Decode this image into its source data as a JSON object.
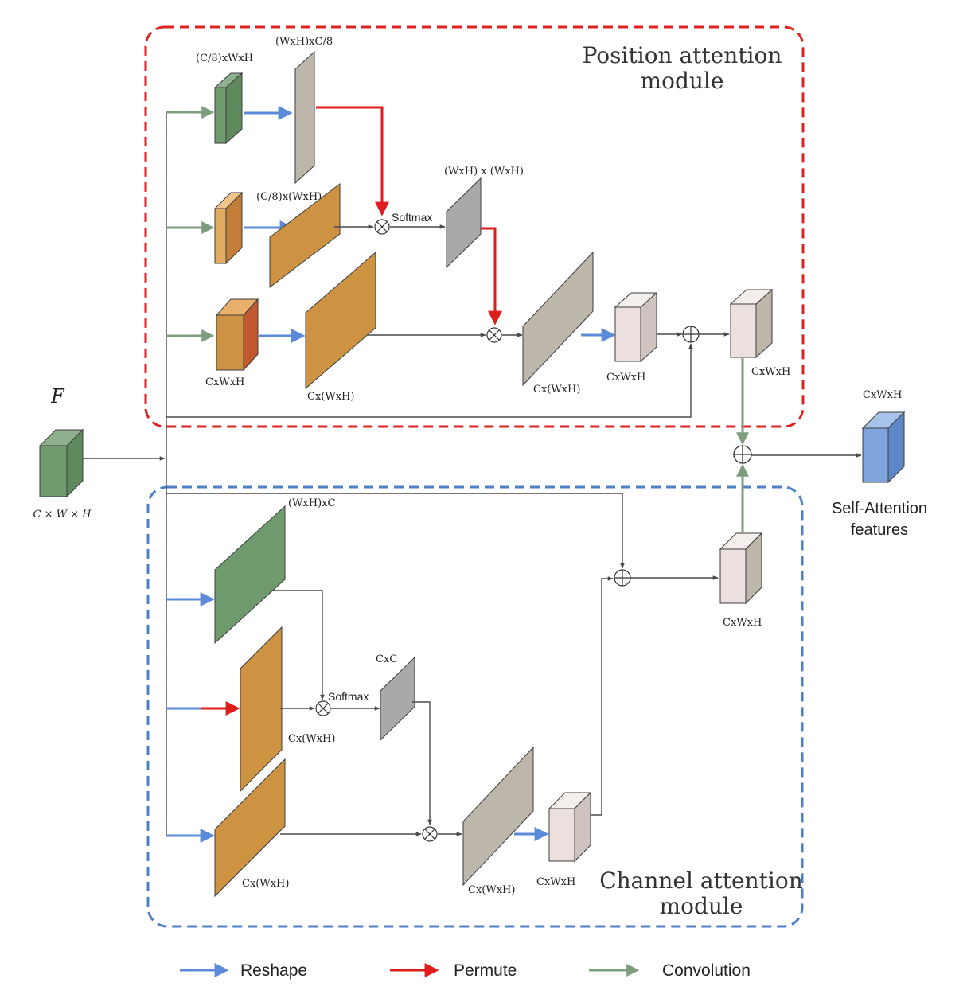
{
  "modules": {
    "position": {
      "title_line1": "Position attention",
      "title_line2": "module"
    },
    "channel": {
      "title_line1": "Channel attention",
      "title_line2": "module"
    }
  },
  "input": {
    "symbol": "F",
    "shape_label": "C × W × H"
  },
  "position_labels": {
    "query_feature": "(C/8)xWxH",
    "query_reshaped": "(WxH)xC/8",
    "key_reshaped": "(C/8)x(WxH)",
    "attention_map": "(WxH) x (WxH)",
    "softmax": "Softmax",
    "value_feature": "CxWxH",
    "value_reshaped": "Cx(WxH)",
    "product": "Cx(WxH)",
    "reshaped_out": "CxWxH",
    "module_out": "CxWxH"
  },
  "channel_labels": {
    "top_reshaped": "(WxH)xC",
    "mid_reshaped": "Cx(WxH)",
    "attention_map": "CxC",
    "softmax": "Softmax",
    "bottom_reshaped": "Cx(WxH)",
    "product": "Cx(WxH)",
    "reshaped_out": "CxWxH",
    "module_out": "CxWxH"
  },
  "output": {
    "shape_label": "CxWxH",
    "title_line1": "Self-Attention",
    "title_line2": "features"
  },
  "legend": {
    "reshape": "Reshape",
    "permute": "Permute",
    "convolution": "Convolution"
  },
  "colors": {
    "position_border": "#dd2222",
    "channel_border": "#4f7fc4",
    "reshape_arrow": "#5b8bd8",
    "permute_arrow": "#e01d1d",
    "convolution_arrow": "#7d9e7e",
    "green_block": "#6f9a6e",
    "orange_block": "#cd9242",
    "gray_block": "#bdb6aa",
    "light_block": "#ece0de",
    "output_block": "#7fa4dc"
  }
}
